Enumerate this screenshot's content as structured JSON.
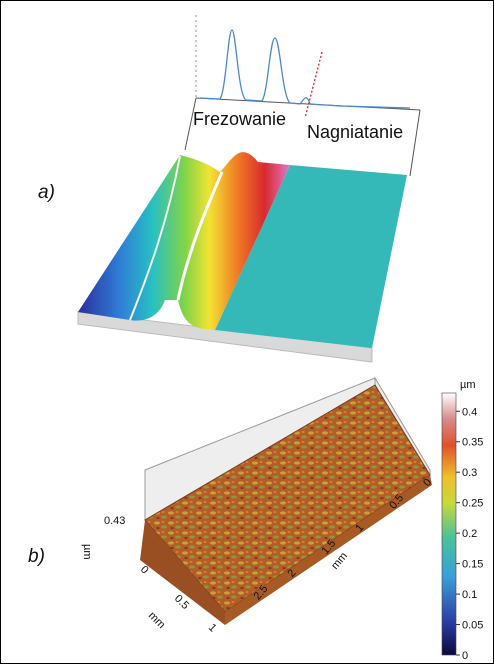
{
  "panel_a": {
    "label": "a)",
    "region_labels": [
      "Frezowanie",
      "Nagniatanie"
    ]
  },
  "panel_b": {
    "label": "b)",
    "z_axis": {
      "max_label": 0.43,
      "unit": "µm"
    },
    "x_axis": {
      "ticks": [
        0,
        0.5,
        1
      ],
      "unit": "mm"
    },
    "y_axis": {
      "ticks": [
        0,
        0.5,
        1,
        1.5,
        2,
        2.5
      ],
      "unit": "mm"
    },
    "colorbar": {
      "unit": "µm",
      "ticks": [
        0.4,
        0.35,
        0.3,
        0.25,
        0.2,
        0.15,
        0.1,
        0.05,
        0
      ]
    }
  }
}
